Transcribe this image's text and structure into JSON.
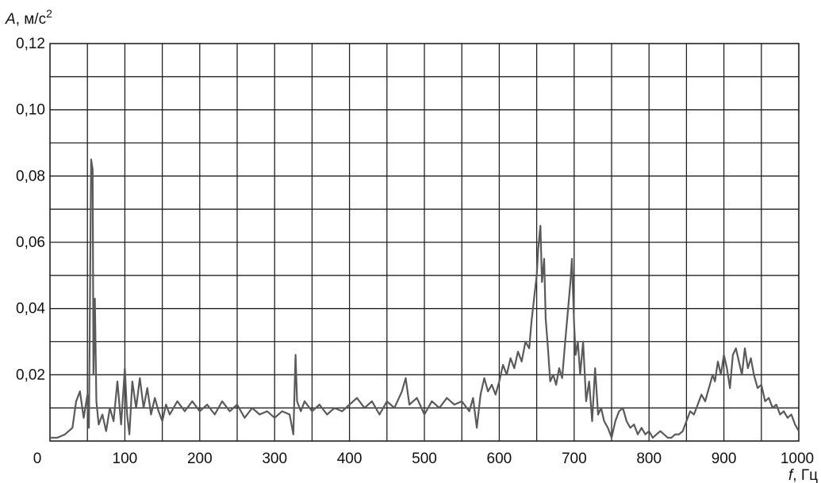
{
  "chart_data": {
    "type": "line",
    "ylabel_symbol": "A",
    "ylabel_unit": ", м/с",
    "ylabel_sup": "2",
    "xlabel_symbol": "f",
    "xlabel_unit": ", Гц",
    "xlim": [
      0,
      1000
    ],
    "ylim": [
      0,
      0.12
    ],
    "x_ticks": [
      "0",
      "100",
      "200",
      "300",
      "400",
      "500",
      "600",
      "700",
      "800",
      "900",
      "1000"
    ],
    "y_ticks": [
      "0,02",
      "0,04",
      "0,06",
      "0,08",
      "0,10",
      "0,12"
    ],
    "grid": true,
    "series": [
      {
        "color": "#5a5a5a",
        "points": [
          [
            0,
            0.001
          ],
          [
            10,
            0.001
          ],
          [
            20,
            0.002
          ],
          [
            30,
            0.004
          ],
          [
            35,
            0.012
          ],
          [
            40,
            0.015
          ],
          [
            45,
            0.007
          ],
          [
            50,
            0.014
          ],
          [
            52,
            0.004
          ],
          [
            55,
            0.085
          ],
          [
            57,
            0.082
          ],
          [
            58,
            0.02
          ],
          [
            60,
            0.043
          ],
          [
            62,
            0.012
          ],
          [
            65,
            0.005
          ],
          [
            70,
            0.008
          ],
          [
            75,
            0.003
          ],
          [
            80,
            0.01
          ],
          [
            85,
            0.006
          ],
          [
            90,
            0.018
          ],
          [
            95,
            0.005
          ],
          [
            100,
            0.022
          ],
          [
            103,
            0.008
          ],
          [
            106,
            0.002
          ],
          [
            110,
            0.018
          ],
          [
            115,
            0.01
          ],
          [
            120,
            0.019
          ],
          [
            125,
            0.01
          ],
          [
            130,
            0.016
          ],
          [
            135,
            0.008
          ],
          [
            140,
            0.013
          ],
          [
            145,
            0.009
          ],
          [
            150,
            0.006
          ],
          [
            155,
            0.011
          ],
          [
            160,
            0.008
          ],
          [
            170,
            0.012
          ],
          [
            180,
            0.009
          ],
          [
            190,
            0.012
          ],
          [
            200,
            0.009
          ],
          [
            210,
            0.011
          ],
          [
            220,
            0.008
          ],
          [
            230,
            0.012
          ],
          [
            240,
            0.009
          ],
          [
            250,
            0.011
          ],
          [
            260,
            0.007
          ],
          [
            270,
            0.01
          ],
          [
            280,
            0.008
          ],
          [
            290,
            0.009
          ],
          [
            300,
            0.007
          ],
          [
            310,
            0.009
          ],
          [
            320,
            0.008
          ],
          [
            325,
            0.002
          ],
          [
            328,
            0.026
          ],
          [
            330,
            0.012
          ],
          [
            335,
            0.009
          ],
          [
            340,
            0.012
          ],
          [
            350,
            0.009
          ],
          [
            360,
            0.011
          ],
          [
            370,
            0.008
          ],
          [
            380,
            0.01
          ],
          [
            390,
            0.009
          ],
          [
            400,
            0.011
          ],
          [
            410,
            0.013
          ],
          [
            420,
            0.01
          ],
          [
            430,
            0.012
          ],
          [
            440,
            0.008
          ],
          [
            450,
            0.012
          ],
          [
            460,
            0.01
          ],
          [
            470,
            0.015
          ],
          [
            475,
            0.019
          ],
          [
            480,
            0.011
          ],
          [
            490,
            0.013
          ],
          [
            500,
            0.008
          ],
          [
            510,
            0.012
          ],
          [
            520,
            0.01
          ],
          [
            530,
            0.013
          ],
          [
            540,
            0.011
          ],
          [
            550,
            0.012
          ],
          [
            560,
            0.009
          ],
          [
            565,
            0.013
          ],
          [
            570,
            0.004
          ],
          [
            575,
            0.014
          ],
          [
            580,
            0.019
          ],
          [
            585,
            0.015
          ],
          [
            590,
            0.017
          ],
          [
            595,
            0.014
          ],
          [
            600,
            0.018
          ],
          [
            605,
            0.023
          ],
          [
            610,
            0.02
          ],
          [
            615,
            0.025
          ],
          [
            620,
            0.022
          ],
          [
            625,
            0.027
          ],
          [
            630,
            0.024
          ],
          [
            635,
            0.03
          ],
          [
            640,
            0.028
          ],
          [
            643,
            0.036
          ],
          [
            646,
            0.042
          ],
          [
            650,
            0.05
          ],
          [
            652,
            0.058
          ],
          [
            655,
            0.065
          ],
          [
            657,
            0.048
          ],
          [
            660,
            0.055
          ],
          [
            662,
            0.037
          ],
          [
            665,
            0.028
          ],
          [
            668,
            0.018
          ],
          [
            672,
            0.02
          ],
          [
            676,
            0.017
          ],
          [
            680,
            0.022
          ],
          [
            684,
            0.019
          ],
          [
            688,
            0.03
          ],
          [
            692,
            0.04
          ],
          [
            695,
            0.048
          ],
          [
            697,
            0.055
          ],
          [
            700,
            0.035
          ],
          [
            702,
            0.026
          ],
          [
            705,
            0.03
          ],
          [
            708,
            0.02
          ],
          [
            712,
            0.03
          ],
          [
            716,
            0.012
          ],
          [
            720,
            0.018
          ],
          [
            724,
            0.006
          ],
          [
            728,
            0.022
          ],
          [
            732,
            0.008
          ],
          [
            736,
            0.01
          ],
          [
            740,
            0.006
          ],
          [
            745,
            0.004
          ],
          [
            750,
            0.001
          ],
          [
            755,
            0.006
          ],
          [
            760,
            0.009
          ],
          [
            765,
            0.01
          ],
          [
            770,
            0.006
          ],
          [
            775,
            0.004
          ],
          [
            780,
            0.005
          ],
          [
            785,
            0.002
          ],
          [
            790,
            0.004
          ],
          [
            795,
            0.002
          ],
          [
            800,
            0.003
          ],
          [
            805,
            0.001
          ],
          [
            810,
            0.002
          ],
          [
            815,
            0.003
          ],
          [
            820,
            0.002
          ],
          [
            825,
            0.001
          ],
          [
            830,
            0.001
          ],
          [
            835,
            0.002
          ],
          [
            840,
            0.002
          ],
          [
            845,
            0.003
          ],
          [
            850,
            0.006
          ],
          [
            855,
            0.009
          ],
          [
            860,
            0.008
          ],
          [
            865,
            0.011
          ],
          [
            870,
            0.014
          ],
          [
            875,
            0.012
          ],
          [
            880,
            0.016
          ],
          [
            885,
            0.02
          ],
          [
            888,
            0.018
          ],
          [
            892,
            0.024
          ],
          [
            896,
            0.02
          ],
          [
            900,
            0.026
          ],
          [
            904,
            0.022
          ],
          [
            908,
            0.016
          ],
          [
            912,
            0.026
          ],
          [
            916,
            0.028
          ],
          [
            920,
            0.024
          ],
          [
            924,
            0.02
          ],
          [
            928,
            0.028
          ],
          [
            932,
            0.022
          ],
          [
            936,
            0.025
          ],
          [
            940,
            0.02
          ],
          [
            945,
            0.016
          ],
          [
            950,
            0.017
          ],
          [
            955,
            0.012
          ],
          [
            960,
            0.013
          ],
          [
            965,
            0.01
          ],
          [
            970,
            0.011
          ],
          [
            975,
            0.008
          ],
          [
            980,
            0.009
          ],
          [
            985,
            0.007
          ],
          [
            990,
            0.008
          ],
          [
            995,
            0.005
          ],
          [
            1000,
            0.003
          ]
        ]
      }
    ]
  }
}
